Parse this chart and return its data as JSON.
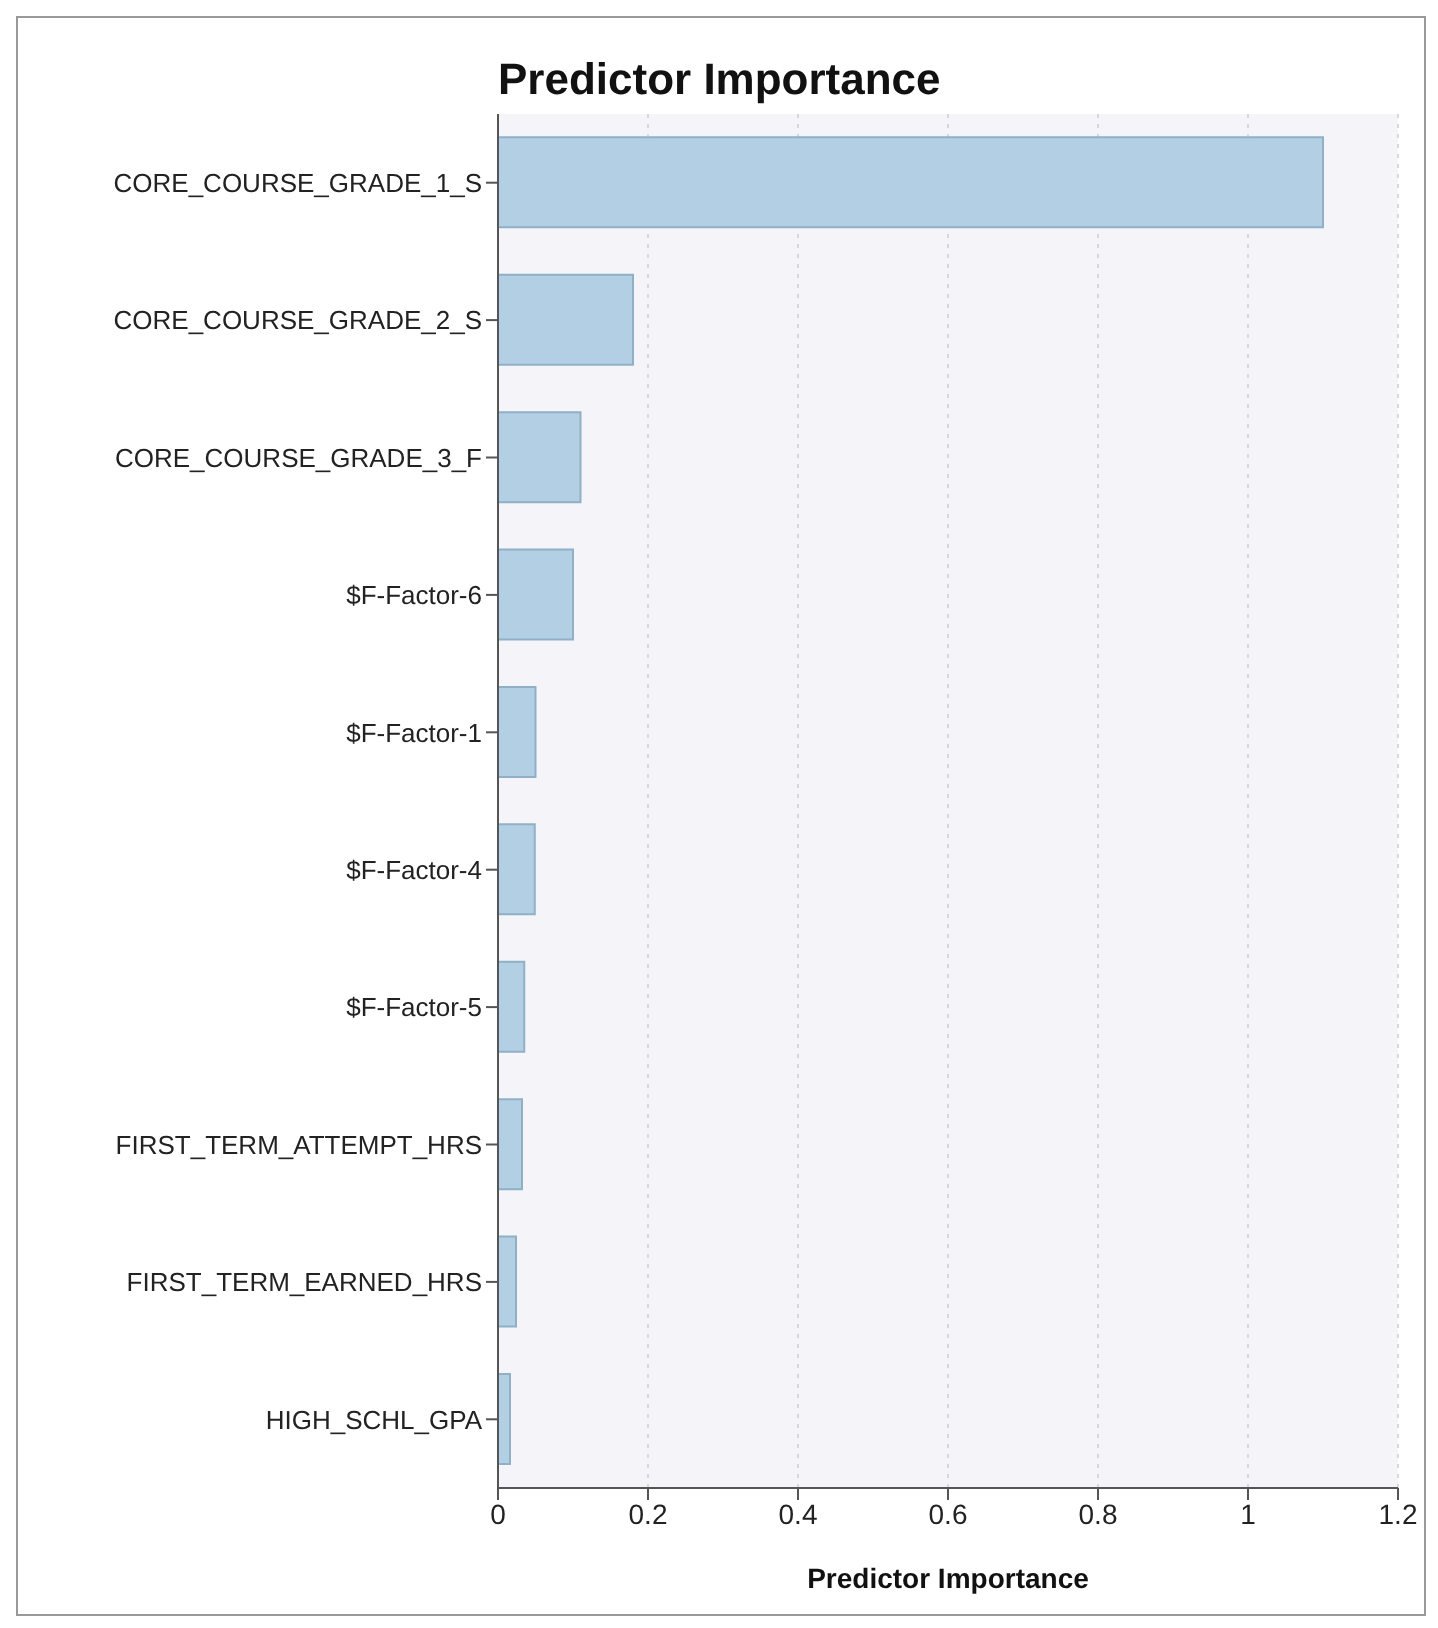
{
  "chart_data": {
    "type": "bar",
    "orientation": "horizontal",
    "title": "Predictor Importance",
    "xlabel": "Predictor Importance",
    "categories": [
      "CORE_COURSE_GRADE_1_S",
      "CORE_COURSE_GRADE_2_S",
      "CORE_COURSE_GRADE_3_F",
      "$F-Factor-6",
      "$F-Factor-1",
      "$F-Factor-4",
      "$F-Factor-5",
      "FIRST_TERM_ATTEMPT_HRS",
      "FIRST_TERM_EARNED_HRS",
      "HIGH_SCHL_GPA"
    ],
    "values": [
      1.1,
      0.18,
      0.11,
      0.1,
      0.05,
      0.049,
      0.035,
      0.032,
      0.024,
      0.016
    ],
    "color": "#b3cfe3",
    "xlim": [
      0,
      1.2
    ],
    "xticks": [
      0,
      0.2,
      0.4,
      0.6,
      0.8,
      1,
      1.2
    ],
    "grid": "x"
  }
}
